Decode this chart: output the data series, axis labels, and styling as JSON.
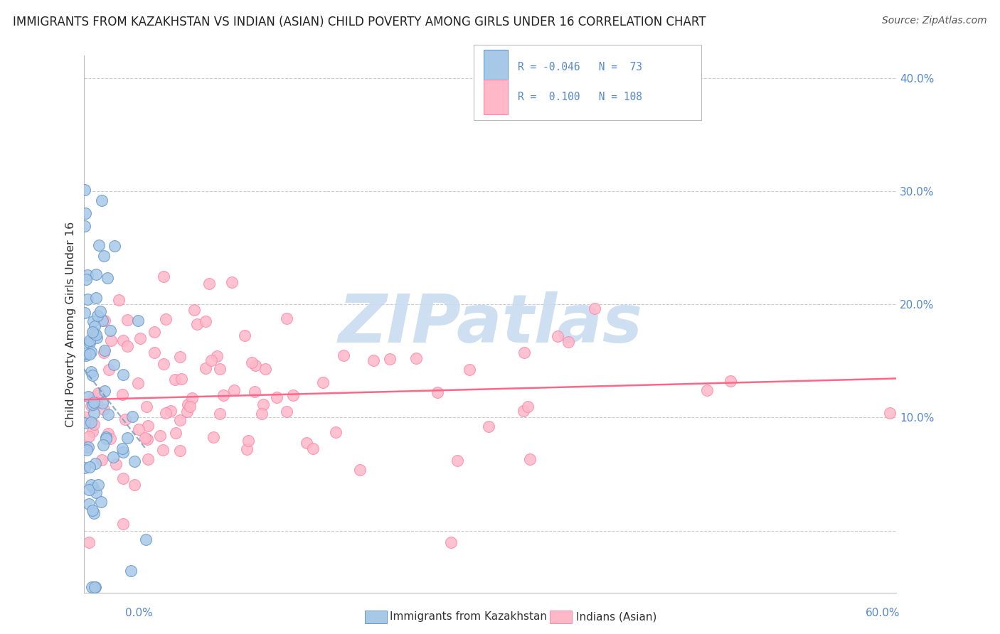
{
  "title": "IMMIGRANTS FROM KAZAKHSTAN VS INDIAN (ASIAN) CHILD POVERTY AMONG GIRLS UNDER 16 CORRELATION CHART",
  "source": "Source: ZipAtlas.com",
  "ylabel": "Child Poverty Among Girls Under 16",
  "xlim": [
    0,
    0.6
  ],
  "ylim": [
    -0.055,
    0.42
  ],
  "ytick_vals": [
    0.0,
    0.1,
    0.2,
    0.3,
    0.4
  ],
  "ytick_labels": [
    "",
    "10.0%",
    "20.0%",
    "30.0%",
    "40.0%"
  ],
  "blue_color": "#A8C8E8",
  "blue_edge_color": "#6699CC",
  "pink_color": "#FFB8C8",
  "pink_edge_color": "#FF88AA",
  "blue_line_color": "#6699BB",
  "pink_line_color": "#FF6688",
  "watermark": "ZIPatlas",
  "watermark_color": "#C8DCF0",
  "background_color": "#FFFFFF",
  "grid_color": "#CCCCCC",
  "title_color": "#222222",
  "source_color": "#555555",
  "axis_label_color": "#333333",
  "tick_label_color": "#5588CC",
  "legend_text_color_rn": "#5588CC",
  "legend_text_color_label": "#333333"
}
